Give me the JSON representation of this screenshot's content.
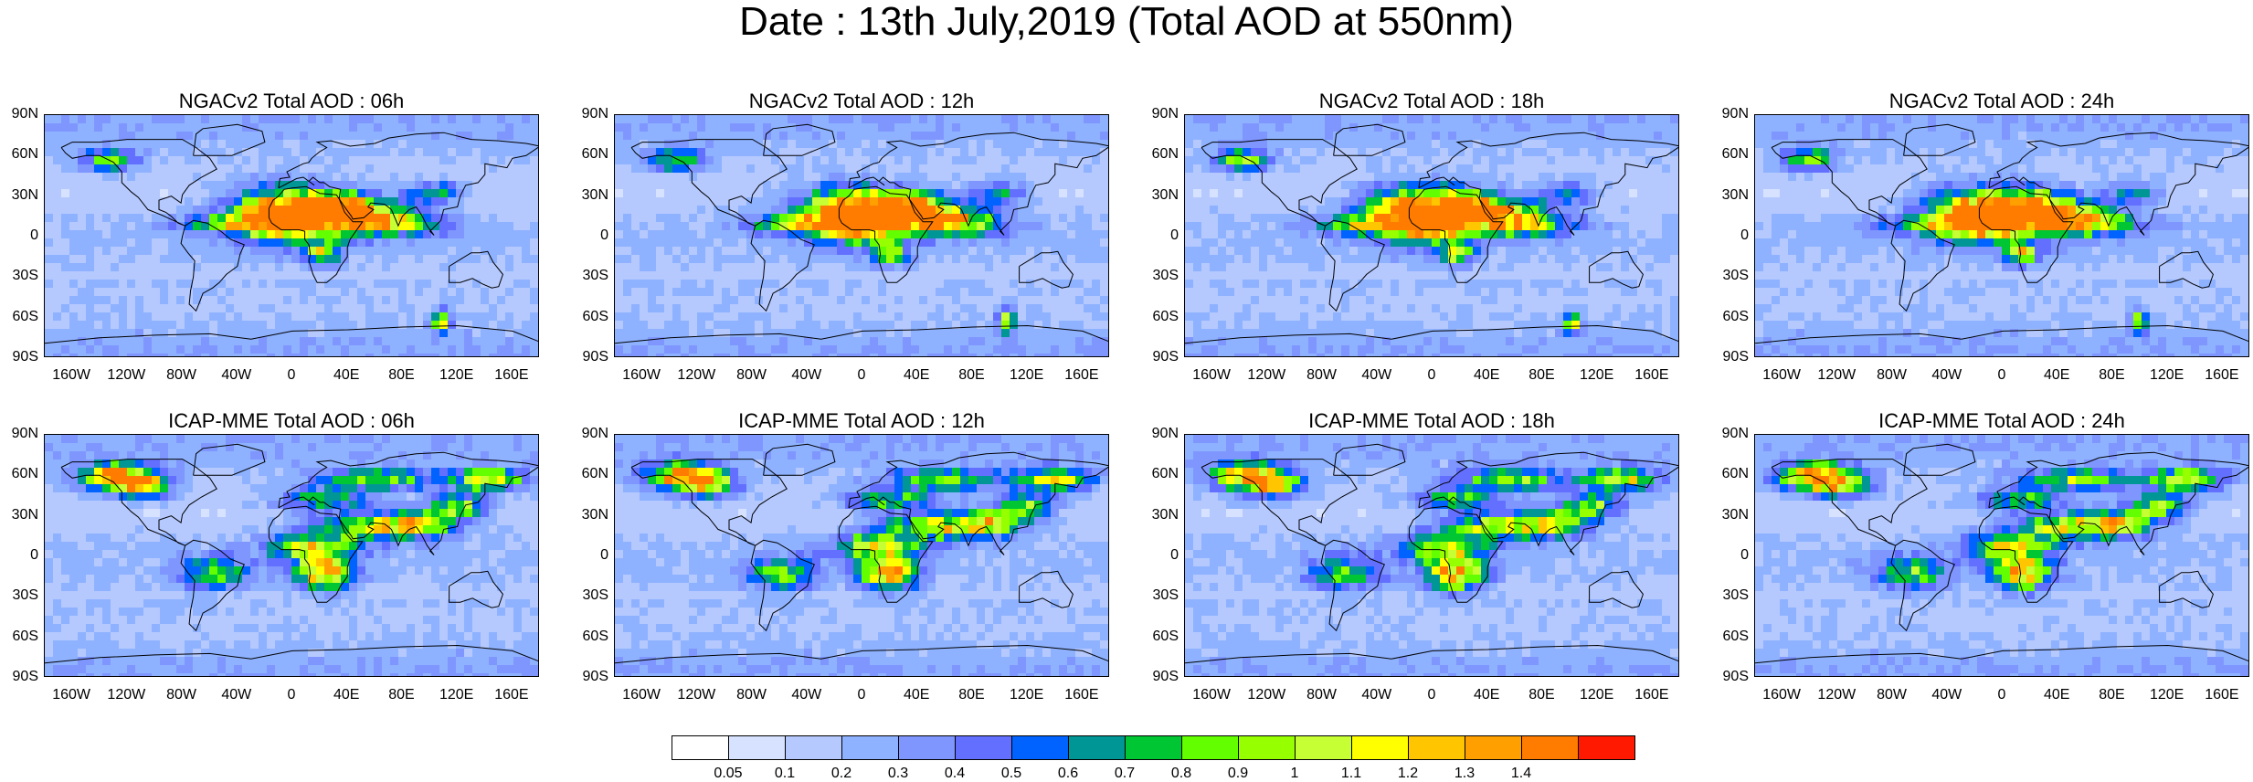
{
  "title": "Date : 13th July,2019 (Total AOD at 550nm)",
  "panels": [
    {
      "title": "NGACv2 Total AOD : 06h",
      "model": "NGACv2"
    },
    {
      "title": "NGACv2 Total AOD : 12h",
      "model": "NGACv2"
    },
    {
      "title": "NGACv2 Total AOD : 18h",
      "model": "NGACv2"
    },
    {
      "title": "NGACv2 Total AOD : 24h",
      "model": "NGACv2"
    },
    {
      "title": "ICAP-MME Total AOD : 06h",
      "model": "ICAP-MME"
    },
    {
      "title": "ICAP-MME Total AOD : 12h",
      "model": "ICAP-MME"
    },
    {
      "title": "ICAP-MME Total AOD : 18h",
      "model": "ICAP-MME"
    },
    {
      "title": "ICAP-MME Total AOD : 24h",
      "model": "ICAP-MME"
    }
  ],
  "lat_labels": [
    "90N",
    "60N",
    "30N",
    "0",
    "30S",
    "60S",
    "90S"
  ],
  "lon_labels": [
    "160W",
    "120W",
    "80W",
    "40W",
    "0",
    "40E",
    "80E",
    "120E",
    "160E"
  ],
  "colorbar": {
    "colors": [
      "#ffffff",
      "#d6e2ff",
      "#b5c9ff",
      "#8eb2ff",
      "#7f96ff",
      "#6370ff",
      "#0063ff",
      "#009696",
      "#00c633",
      "#63ff00",
      "#96ff00",
      "#c6ff33",
      "#ffff00",
      "#ffc600",
      "#ffa000",
      "#ff7c00",
      "#ff1900"
    ],
    "labels": [
      "0.05",
      "0.1",
      "0.2",
      "0.3",
      "0.4",
      "0.5",
      "0.6",
      "0.7",
      "0.8",
      "0.9",
      "1",
      "1.1",
      "1.2",
      "1.3",
      "1.4"
    ]
  }
}
